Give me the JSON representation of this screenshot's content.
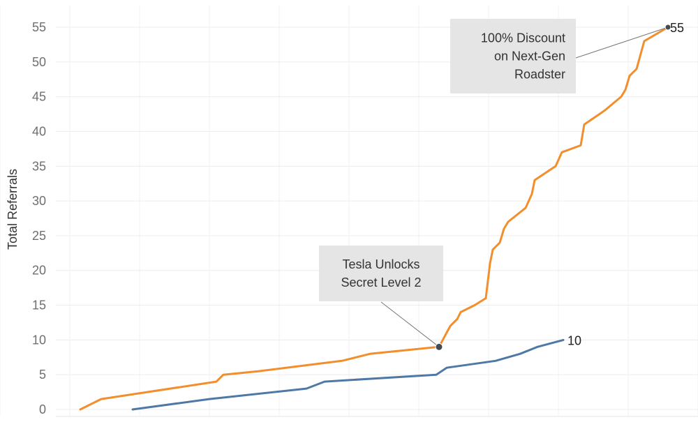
{
  "chart_data": {
    "type": "line",
    "ylabel": "Total Referrals",
    "xlabel": "",
    "ylim": [
      -1,
      57
    ],
    "xlim": [
      0,
      100
    ],
    "y_ticks": [
      0,
      5,
      10,
      15,
      20,
      25,
      30,
      35,
      40,
      45,
      50,
      55
    ],
    "x_ticks": [
      0,
      10,
      20,
      30,
      40,
      50,
      60,
      70,
      80,
      90,
      100
    ],
    "grid": true,
    "series": [
      {
        "color": "#F28E2B",
        "values": [
          [
            11.5,
            0
          ],
          [
            14.5,
            1.5
          ],
          [
            31,
            4
          ],
          [
            32,
            5
          ],
          [
            37,
            5.5
          ],
          [
            49,
            7
          ],
          [
            53,
            8
          ],
          [
            62.9,
            9
          ],
          [
            64.5,
            12
          ],
          [
            65.5,
            13
          ],
          [
            66,
            14
          ],
          [
            68,
            15
          ],
          [
            69.6,
            16
          ],
          [
            70.2,
            21
          ],
          [
            70.6,
            23
          ],
          [
            71.6,
            24
          ],
          [
            72.2,
            26
          ],
          [
            72.8,
            27
          ],
          [
            75.3,
            29
          ],
          [
            76.2,
            31
          ],
          [
            76.6,
            33
          ],
          [
            79.6,
            35
          ],
          [
            80.5,
            37
          ],
          [
            83.2,
            38
          ],
          [
            83.7,
            41
          ],
          [
            86.6,
            43
          ],
          [
            89,
            45
          ],
          [
            89.6,
            46
          ],
          [
            90.2,
            48
          ],
          [
            91.2,
            49
          ],
          [
            92.3,
            53
          ],
          [
            95.7,
            55
          ]
        ],
        "end_label": "55"
      },
      {
        "color": "#4E79A7",
        "values": [
          [
            19,
            0
          ],
          [
            30,
            1.5
          ],
          [
            43.9,
            3
          ],
          [
            46.5,
            4
          ],
          [
            62.5,
            5
          ],
          [
            64,
            6
          ],
          [
            71,
            7
          ],
          [
            74.5,
            8
          ],
          [
            77,
            9
          ],
          [
            80.7,
            10
          ]
        ],
        "end_label": "10"
      }
    ],
    "annotations": [
      {
        "text_lines": [
          "Tesla Unlocks",
          "Secret Level 2"
        ],
        "point": [
          62.9,
          9
        ],
        "marker_color": "#454a52",
        "box_color": "#e5e5e5"
      },
      {
        "text_lines": [
          "100% Discount",
          "on Next-Gen",
          "Roadster"
        ],
        "point": [
          95.7,
          55
        ],
        "marker_color": "#454a52",
        "box_color": "#e5e5e5"
      }
    ]
  }
}
